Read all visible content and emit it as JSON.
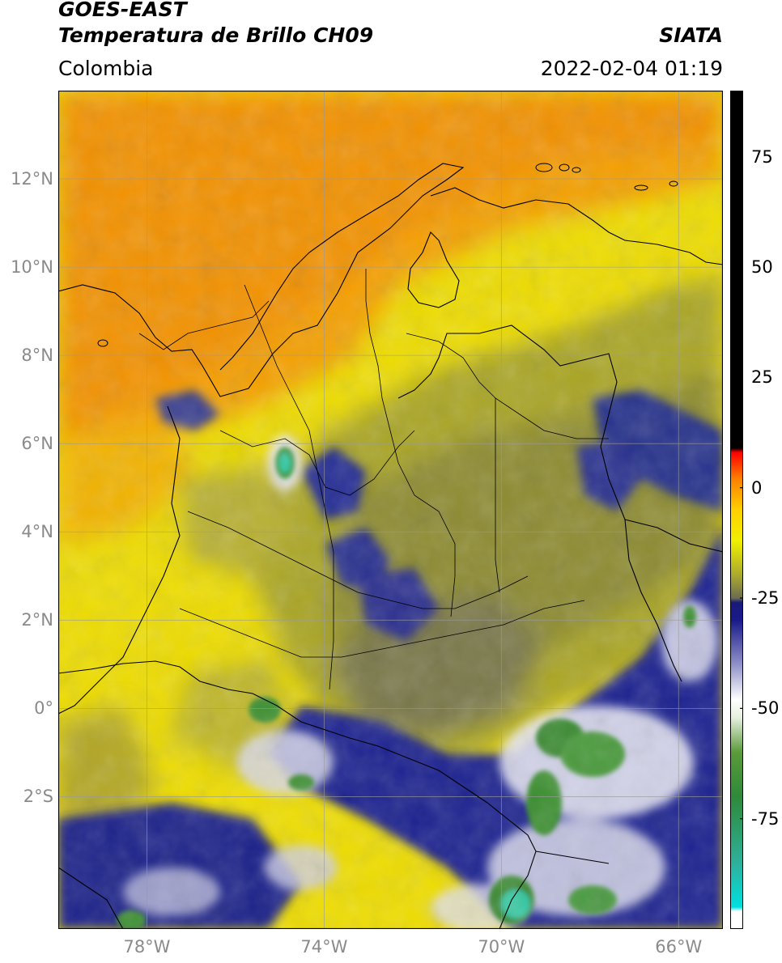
{
  "header": {
    "title_line1": "GOES-EAST",
    "title_line2": "Temperatura de Brillo CH09",
    "brand": "SIATA",
    "region": "Colombia",
    "timestamp": "2022-02-04 01:19"
  },
  "map": {
    "lon_range": [
      -80,
      -65
    ],
    "lat_range": [
      -5,
      14
    ],
    "lat_ticks": [
      {
        "value": 12,
        "label": "12°N"
      },
      {
        "value": 10,
        "label": "10°N"
      },
      {
        "value": 8,
        "label": "8°N"
      },
      {
        "value": 6,
        "label": "6°N"
      },
      {
        "value": 4,
        "label": "4°N"
      },
      {
        "value": 2,
        "label": "2°N"
      },
      {
        "value": 0,
        "label": "0°"
      },
      {
        "value": -2,
        "label": "2°S"
      }
    ],
    "lon_ticks": [
      {
        "value": -78,
        "label": "78°W"
      },
      {
        "value": -74,
        "label": "74°W"
      },
      {
        "value": -70,
        "label": "70°W"
      },
      {
        "value": -66,
        "label": "66°W"
      }
    ],
    "grid": true,
    "colors": {
      "warm_orange": "#f5a000",
      "yellow": "#f0e000",
      "olive": "#8c8c28",
      "navy": "#1a1f8c",
      "white": "#f4f4f4",
      "green": "#3c8c2a",
      "teal": "#30c8a0"
    }
  },
  "colorbar": {
    "range": [
      -100,
      90
    ],
    "ticks": [
      {
        "value": 75,
        "label": "75"
      },
      {
        "value": 50,
        "label": "50"
      },
      {
        "value": 25,
        "label": "25"
      },
      {
        "value": 0,
        "label": "0"
      },
      {
        "value": -25,
        "label": "-25"
      },
      {
        "value": -50,
        "label": "-50"
      },
      {
        "value": -75,
        "label": "-75"
      }
    ],
    "stops": [
      {
        "value": -100,
        "color": "#ffffff"
      },
      {
        "value": -96,
        "color": "#ffffff"
      },
      {
        "value": -95,
        "color": "#00e0e0"
      },
      {
        "value": -85,
        "color": "#2fb09a"
      },
      {
        "value": -70,
        "color": "#2e8a3a"
      },
      {
        "value": -60,
        "color": "#5a9a3a"
      },
      {
        "value": -52,
        "color": "#e8f0e0"
      },
      {
        "value": -48,
        "color": "#ffffff"
      },
      {
        "value": -40,
        "color": "#9090c8"
      },
      {
        "value": -30,
        "color": "#1a1a8a"
      },
      {
        "value": -26,
        "color": "#1a1a7a"
      },
      {
        "value": -25,
        "color": "#6c6c50"
      },
      {
        "value": -20,
        "color": "#a8a830"
      },
      {
        "value": -12,
        "color": "#f0f000"
      },
      {
        "value": -5,
        "color": "#ffd000"
      },
      {
        "value": 2,
        "color": "#ff8000"
      },
      {
        "value": 8,
        "color": "#ff0000"
      },
      {
        "value": 9,
        "color": "#000000"
      },
      {
        "value": 90,
        "color": "#000000"
      }
    ]
  }
}
